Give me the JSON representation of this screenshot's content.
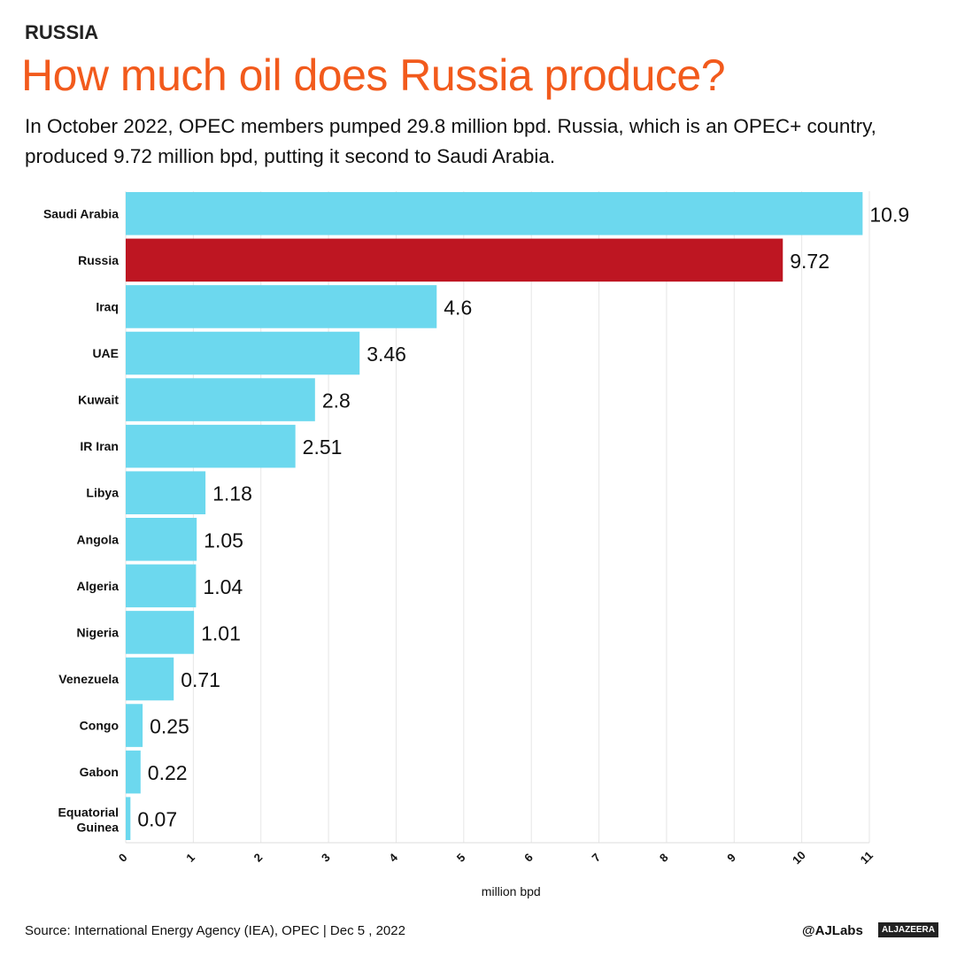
{
  "kicker": "RUSSIA",
  "title": "How much oil does Russia produce?",
  "subtitle": "In October 2022, OPEC members pumped 29.8 million bpd. Russia, which is an OPEC+ country, produced 9.72 million bpd, putting it second to Saudi Arabia.",
  "footer": {
    "source": "Source: International Energy Agency (IEA), OPEC |  Dec 5 , 2022",
    "handle": "@AJLabs",
    "logo_text": "ALJAZEERA"
  },
  "colors": {
    "default_bar": "#6cd8ee",
    "highlight_bar": "#be1622",
    "title": "#f25a1c"
  },
  "chart_data": {
    "type": "bar",
    "orientation": "horizontal",
    "categories": [
      "Saudi Arabia",
      "Russia",
      "Iraq",
      "UAE",
      "Kuwait",
      "IR Iran",
      "Libya",
      "Angola",
      "Algeria",
      "Nigeria",
      "Venezuela",
      "Congo",
      "Gabon",
      "Equatorial Guinea"
    ],
    "values": [
      10.9,
      9.72,
      4.6,
      3.46,
      2.8,
      2.51,
      1.18,
      1.05,
      1.04,
      1.01,
      0.71,
      0.25,
      0.22,
      0.07
    ],
    "highlight": "Russia",
    "xlabel": "million bpd",
    "xlim": [
      0,
      11
    ],
    "xticks": [
      0,
      1,
      2,
      3,
      4,
      5,
      6,
      7,
      8,
      9,
      10,
      11
    ],
    "grid": "vertical"
  }
}
